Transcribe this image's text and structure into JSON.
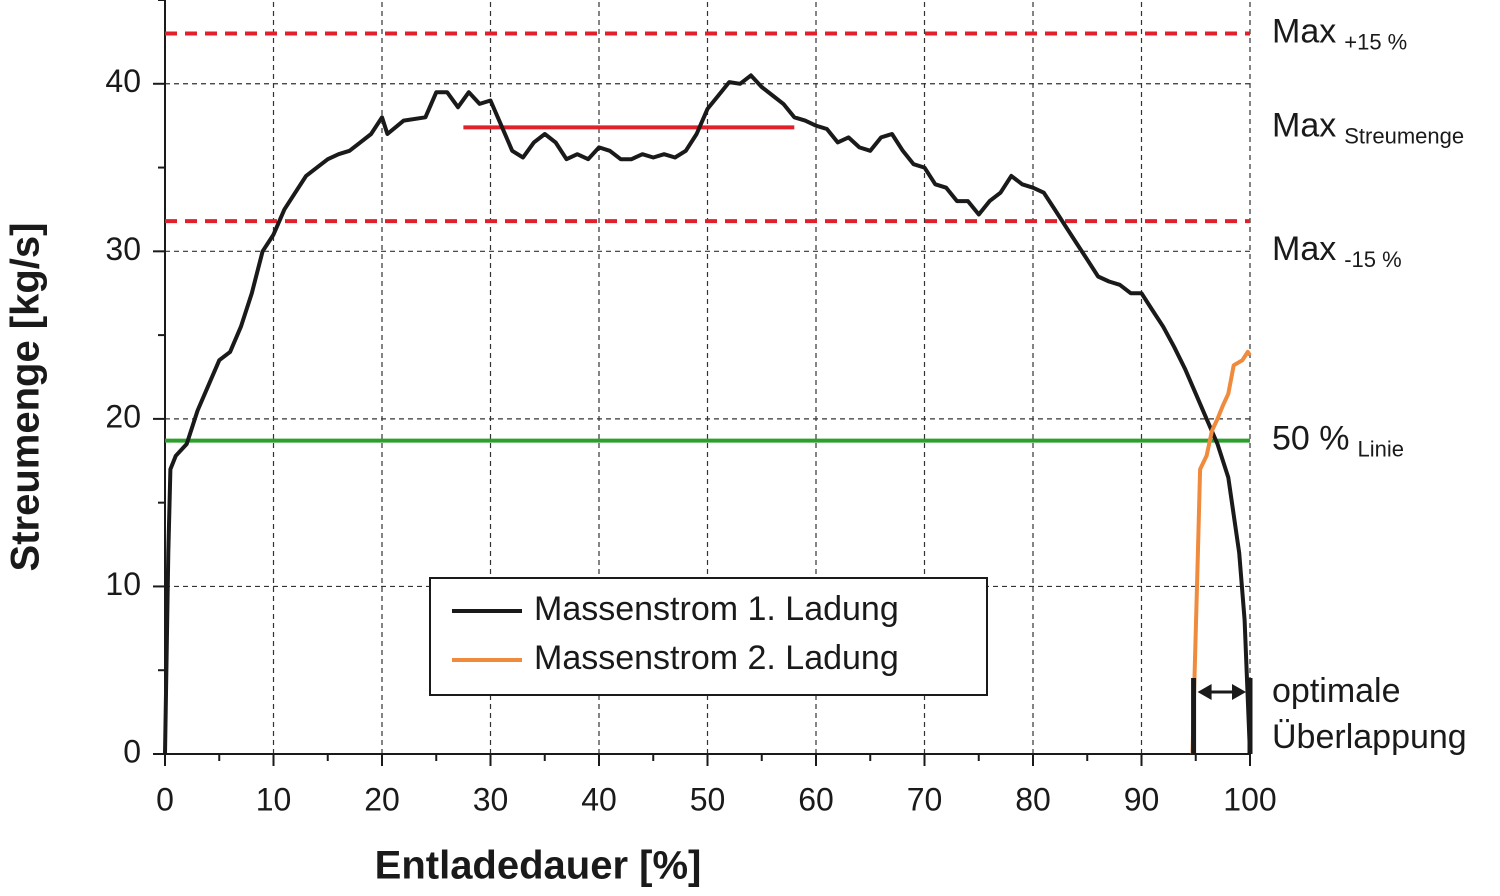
{
  "chart_data": {
    "type": "line",
    "xlabel": "Entladedauer [%]",
    "ylabel": "Streumenge [kg/s]",
    "xlim": [
      0,
      100
    ],
    "ylim": [
      0,
      45
    ],
    "xticks": [
      0,
      10,
      20,
      30,
      40,
      50,
      60,
      70,
      80,
      90,
      100
    ],
    "yticks": [
      0,
      10,
      20,
      30,
      40
    ],
    "grid": true,
    "legend": "lower center",
    "series": [
      {
        "name": "Massenstrom 1. Ladung",
        "color": "#1a1a1a",
        "x": [
          0,
          0.3,
          0.5,
          1,
          2,
          3,
          4,
          5,
          6,
          7,
          8,
          9,
          10,
          11,
          12,
          13,
          14,
          15,
          16,
          17,
          18,
          19,
          20,
          20.5,
          22,
          24,
          25,
          26,
          27,
          28,
          29,
          30,
          31,
          32,
          33,
          34,
          35,
          36,
          37,
          38,
          39,
          40,
          41,
          42,
          43,
          44,
          45,
          46,
          47,
          48,
          49,
          50,
          51,
          52,
          53,
          54,
          55,
          56,
          57,
          58,
          59,
          60,
          61,
          62,
          63,
          64,
          65,
          66,
          67,
          68,
          69,
          70,
          71,
          72,
          73,
          74,
          75,
          76,
          77,
          78,
          79,
          80,
          81,
          82,
          83,
          84,
          85,
          86,
          87,
          88,
          89,
          90,
          91,
          92,
          93,
          94,
          95,
          96,
          97,
          98,
          99,
          99.5,
          100
        ],
        "values": [
          0,
          12,
          17,
          17.8,
          18.5,
          20.5,
          22,
          23.5,
          24,
          25.5,
          27.5,
          30,
          31,
          32.5,
          33.5,
          34.5,
          35,
          35.5,
          35.8,
          36,
          36.5,
          37,
          38,
          37,
          37.8,
          38,
          39.5,
          39.5,
          38.6,
          39.5,
          38.8,
          39,
          37.5,
          36,
          35.6,
          36.5,
          37,
          36.5,
          35.5,
          35.8,
          35.5,
          36.2,
          36,
          35.5,
          35.5,
          35.8,
          35.6,
          35.8,
          35.6,
          36,
          37,
          38.5,
          39.3,
          40.1,
          40,
          40.5,
          39.8,
          39.3,
          38.8,
          38,
          37.8,
          37.5,
          37.3,
          36.5,
          36.8,
          36.2,
          36,
          36.8,
          37,
          36,
          35.2,
          35,
          34,
          33.8,
          33,
          33,
          32.2,
          33,
          33.5,
          34.5,
          34,
          33.8,
          33.5,
          32.5,
          31.5,
          30.5,
          29.5,
          28.5,
          28.2,
          28,
          27.5,
          27.5,
          26.5,
          25.5,
          24.3,
          23,
          21.5,
          20,
          18.5,
          16.5,
          12,
          8,
          0
        ]
      },
      {
        "name": "Massenstrom 2. Ladung",
        "color": "#f08a3c",
        "x": [
          94.7,
          94.9,
          95.2,
          95.4,
          96,
          96.5,
          97,
          97.5,
          98,
          98.5,
          99.3,
          99.8,
          100
        ],
        "values": [
          0,
          5,
          12,
          17,
          17.8,
          19.3,
          20,
          20.8,
          21.5,
          23.2,
          23.5,
          24,
          23.8
        ]
      }
    ],
    "reference_lines": [
      {
        "label": "Max",
        "sub": "+15 %",
        "value": 43,
        "color": "#e0202a",
        "style": "dashed"
      },
      {
        "label": "Max",
        "sub": "Streumenge",
        "value": 37.4,
        "color": "#e0202a",
        "style": "solid",
        "xrange": [
          27.5,
          58
        ]
      },
      {
        "label": "Max",
        "sub": "-15 %",
        "value": 31.8,
        "color": "#e0202a",
        "style": "dashed"
      },
      {
        "label": "50 %",
        "sub": "Linie",
        "value": 18.7,
        "color": "#2ca02c",
        "style": "solid"
      }
    ],
    "overlap": {
      "x": [
        94.8,
        100
      ],
      "label": [
        "optimale",
        "Überlappung"
      ]
    }
  }
}
